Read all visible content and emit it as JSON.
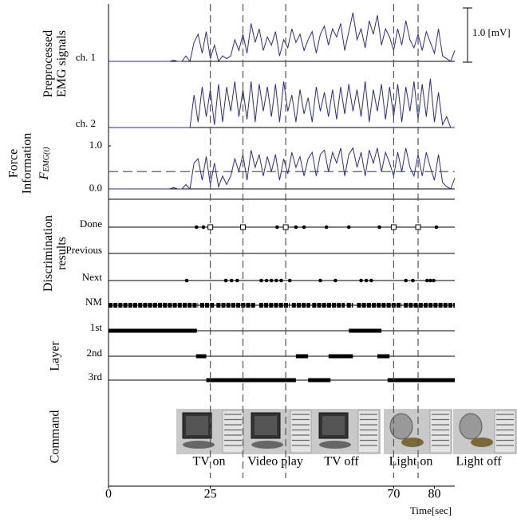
{
  "chart_data": [
    {
      "type": "line",
      "ylabel": [
        "Preprocessed",
        "EMG signals"
      ],
      "x": [
        0,
        1,
        2,
        3,
        4,
        5,
        6,
        7,
        8,
        9,
        10,
        11,
        12,
        13,
        14,
        15,
        16,
        17,
        18,
        19,
        20,
        21,
        22,
        23,
        24,
        25,
        26,
        27,
        28,
        29,
        30,
        31,
        32,
        33,
        34,
        35,
        36,
        37,
        38,
        39,
        40,
        41,
        42,
        43,
        44,
        45,
        46,
        47,
        48,
        49,
        50,
        51,
        52,
        53,
        54,
        55,
        56,
        57,
        58,
        59,
        60,
        61,
        62,
        63,
        64,
        65,
        66,
        67,
        68,
        69,
        70,
        71,
        72,
        73,
        74,
        75,
        76,
        77,
        78,
        79,
        80,
        81,
        82,
        83,
        84,
        85
      ],
      "series": [
        {
          "name": "ch. 1",
          "color": "#2b2b8c",
          "values": [
            0,
            0,
            0,
            0,
            0,
            0,
            0,
            0,
            0,
            0,
            0,
            0,
            0,
            0,
            0,
            0,
            0.02,
            0,
            0,
            0.1,
            0,
            0.35,
            0.5,
            0.15,
            0.55,
            0.05,
            0.3,
            0,
            0.1,
            0.05,
            0.1,
            0.4,
            0.2,
            0.5,
            0.15,
            0.7,
            0.35,
            0.6,
            0.2,
            0.45,
            0.3,
            0.55,
            0.1,
            0.4,
            0.25,
            0.6,
            0.35,
            0.5,
            0.2,
            0.4,
            0.55,
            0.15,
            0.5,
            0.65,
            0.3,
            0.6,
            0.45,
            0.7,
            0.2,
            0.55,
            0.9,
            0.4,
            0.6,
            0.25,
            0.75,
            0.5,
            0.85,
            0.3,
            0.6,
            0.45,
            0.2,
            0.6,
            0.3,
            0.75,
            0.4,
            0.25,
            0.5,
            0.2,
            0.55,
            0.35,
            0.15,
            0.6,
            0.1,
            0.05,
            0,
            0.2
          ]
        },
        {
          "name": "ch. 2",
          "color": "#2b2b8c",
          "values": [
            0,
            0,
            0,
            0,
            0,
            0,
            0,
            0,
            0,
            0,
            0,
            0,
            0,
            0,
            0,
            0,
            0,
            0,
            0,
            0,
            0,
            0.6,
            0.1,
            0.75,
            0.2,
            0.7,
            0.05,
            0.8,
            0.1,
            0.75,
            0.3,
            0.85,
            0.2,
            0.7,
            0.15,
            0.85,
            0.1,
            0.8,
            0.3,
            0.75,
            0.2,
            0.8,
            0.1,
            0.85,
            0.3,
            0.6,
            0.1,
            0.7,
            0.25,
            0.55,
            0.1,
            0.75,
            0.3,
            0.65,
            0.2,
            0.7,
            0.15,
            0.75,
            0.25,
            0.8,
            0.3,
            0.7,
            0.2,
            0.85,
            0.1,
            0.7,
            0.3,
            0.8,
            0.15,
            0.75,
            0.2,
            0.8,
            0.1,
            0.75,
            0.3,
            0.85,
            0.15,
            0.8,
            0.2,
            0.9,
            0.1,
            0.65,
            0.05,
            0.2,
            0,
            0
          ]
        }
      ],
      "scale_bar": {
        "value": 1.0,
        "label": "1.0 [mV]"
      },
      "ylim": [
        0,
        1.1
      ]
    },
    {
      "type": "line",
      "ylabel": [
        "Force",
        "Information"
      ],
      "symbol": "F",
      "symbol_sub": "EMG(t)",
      "ylim": [
        0,
        1
      ],
      "yticks": [
        {
          "value": 1,
          "label": "1.0"
        },
        {
          "value": 0,
          "label": "0.0"
        }
      ],
      "threshold": 0.4,
      "series": [
        {
          "color": "#2b2b8c",
          "values": [
            0,
            0,
            0,
            0,
            0,
            0,
            0,
            0,
            0,
            0,
            0,
            0,
            0,
            0,
            0,
            0,
            0.03,
            0,
            0,
            0.1,
            0,
            0.6,
            0.7,
            0.2,
            0.75,
            0.1,
            0.6,
            0.05,
            0.3,
            0.1,
            0.3,
            0.7,
            0.4,
            0.8,
            0.2,
            0.9,
            0.5,
            0.8,
            0.3,
            0.75,
            0.4,
            0.8,
            0.2,
            0.7,
            0.35,
            0.85,
            0.5,
            0.75,
            0.3,
            0.7,
            0.85,
            0.3,
            0.8,
            0.9,
            0.4,
            0.85,
            0.6,
            0.95,
            0.3,
            0.8,
            0.95,
            0.5,
            0.85,
            0.3,
            0.9,
            0.6,
            0.95,
            0.4,
            0.85,
            0.6,
            0.3,
            0.85,
            0.4,
            0.95,
            0.5,
            0.3,
            0.8,
            0.3,
            0.85,
            0.5,
            0.2,
            0.8,
            0.15,
            0.05,
            0,
            0.25
          ]
        }
      ]
    },
    {
      "type": "events",
      "ylabel": [
        "Discrimination",
        "results"
      ],
      "rows": [
        {
          "name": "Done",
          "points": [
            21.6,
            23.3,
            25,
            33,
            41.4,
            43.5,
            46,
            48,
            53.5,
            59,
            66.5,
            70,
            76,
            80.5
          ]
        },
        {
          "name": "Previous",
          "points": []
        },
        {
          "name": "Next",
          "points": [
            19.2,
            28.8,
            30.2,
            31.6,
            37.5,
            38.8,
            40,
            41.2,
            42.4,
            44.5,
            52,
            55.7,
            62,
            63.3,
            64.5,
            73,
            74.7,
            78.2,
            79,
            79.8
          ]
        },
        {
          "name": "NM",
          "segments": [
            [
              0,
              22
            ],
            [
              22.5,
              26
            ],
            [
              26.5,
              36
            ],
            [
              37,
              44.5
            ],
            [
              45,
              49.5
            ],
            [
              50,
              58
            ],
            [
              58.5,
              60
            ],
            [
              61,
              72
            ],
            [
              72.5,
              85
            ]
          ]
        }
      ]
    },
    {
      "type": "segments",
      "ylabel": [
        "Layer"
      ],
      "rows": [
        {
          "name": "1st",
          "segments": [
            [
              0,
              21.7
            ],
            [
              59,
              67
            ]
          ]
        },
        {
          "name": "2nd",
          "segments": [
            [
              21.5,
              24
            ],
            [
              46,
              49
            ],
            [
              54,
              60
            ],
            [
              66,
              69
            ]
          ]
        },
        {
          "name": "3rd",
          "segments": [
            [
              24,
              46
            ],
            [
              49,
              54.5
            ],
            [
              68.5,
              85
            ]
          ]
        }
      ]
    },
    {
      "type": "commands",
      "ylabel": [
        "Command"
      ],
      "labels": [
        "TV on",
        "Video play",
        "TV off",
        "Light on",
        "Light off"
      ],
      "event_times": [
        25,
        33,
        43.5,
        70,
        76
      ],
      "xlim": [
        0,
        85
      ],
      "xticks": [
        0,
        25,
        70,
        80
      ],
      "xlabel": "Time[sec]"
    }
  ]
}
